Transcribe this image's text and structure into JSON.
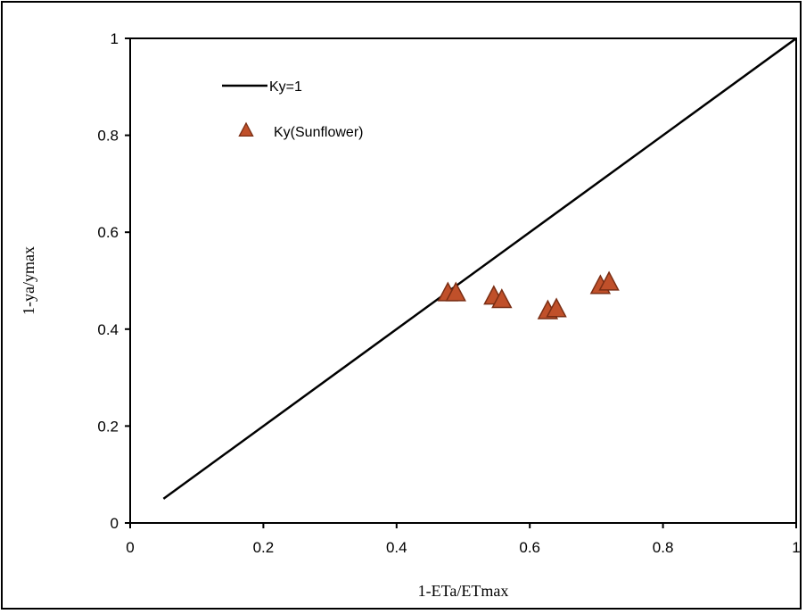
{
  "colors": {
    "line": "#000000",
    "marker_fill": "#C0502A",
    "marker_stroke": "#7A2E14",
    "axis": "#000000"
  },
  "chart_data": {
    "type": "scatter",
    "title": "",
    "xlabel": "1-ETa/ETmax",
    "ylabel": "1-ya/ymax",
    "xlim": [
      0,
      1
    ],
    "ylim": [
      0,
      1
    ],
    "xticks": [
      0,
      0.2,
      0.4,
      0.6,
      0.8,
      1
    ],
    "yticks": [
      0,
      0.2,
      0.4,
      0.6,
      0.8,
      1
    ],
    "xtick_labels": [
      "0",
      "0.2",
      "0.4",
      "0.6",
      "0.8",
      "1"
    ],
    "ytick_labels": [
      "0",
      "0.2",
      "0.4",
      "0.6",
      "0.8",
      "1"
    ],
    "grid": false,
    "legend_position": "top-left",
    "series": [
      {
        "name": "Ky=1",
        "kind": "line",
        "x": [
          0.05,
          1.0
        ],
        "y": [
          0.05,
          1.0
        ]
      },
      {
        "name": "Ky(Sunflower)",
        "kind": "scatter",
        "marker": "triangle",
        "x": [
          0.477,
          0.489,
          0.546,
          0.558,
          0.627,
          0.64,
          0.706,
          0.719
        ],
        "y": [
          0.475,
          0.475,
          0.468,
          0.461,
          0.438,
          0.442,
          0.49,
          0.497
        ]
      }
    ]
  }
}
